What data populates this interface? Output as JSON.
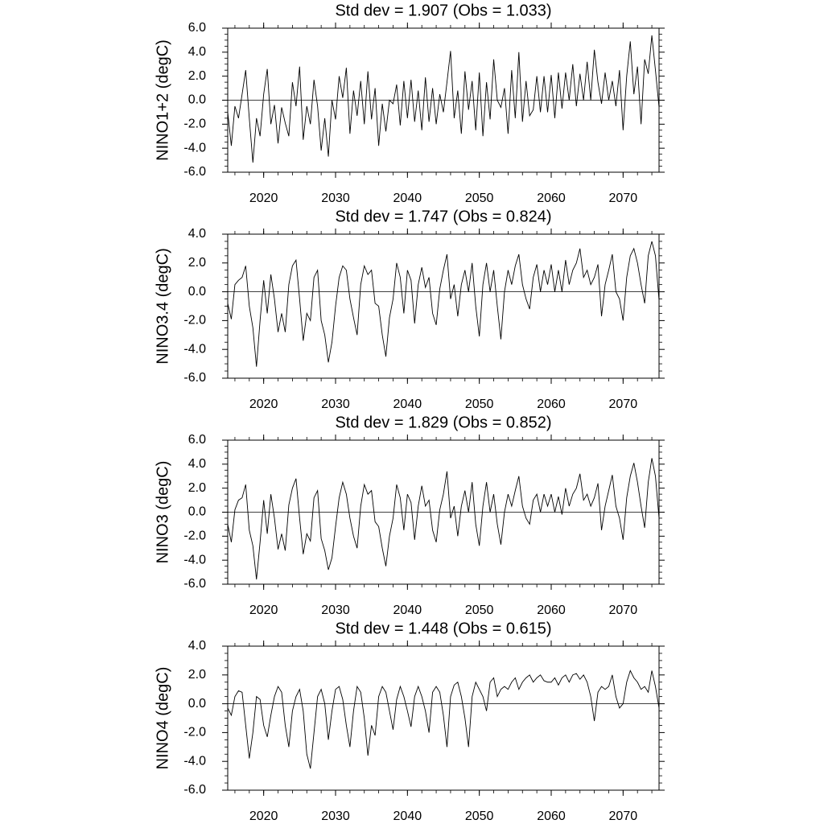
{
  "chart_data": [
    {
      "type": "line",
      "title": "Std dev = 1.907 (Obs = 1.033)",
      "ylabel": "NINO1+2 (degC)",
      "color": "#000000",
      "refline": 0,
      "xlim": [
        2015,
        2075
      ],
      "xticks": [
        2020,
        2030,
        2040,
        2050,
        2060,
        2070
      ],
      "ylim": [
        -6,
        6
      ],
      "yticks": [
        {
          "value": -6,
          "label": "-6.0"
        },
        {
          "value": -4,
          "label": "-4.0"
        },
        {
          "value": -2,
          "label": "-2.0"
        },
        {
          "value": 0,
          "label": "0.0"
        },
        {
          "value": 2,
          "label": "2.0"
        },
        {
          "value": 4,
          "label": "4.0"
        },
        {
          "value": 6,
          "label": "6.0"
        }
      ],
      "x": [
        2015,
        2015.5,
        2016,
        2016.5,
        2017,
        2017.5,
        2018,
        2018.5,
        2019,
        2019.5,
        2020,
        2020.5,
        2021,
        2021.5,
        2022,
        2022.5,
        2023,
        2023.5,
        2024,
        2024.5,
        2025,
        2025.5,
        2026,
        2026.5,
        2027,
        2027.5,
        2028,
        2028.5,
        2029,
        2029.5,
        2030,
        2030.5,
        2031,
        2031.5,
        2032,
        2032.5,
        2033,
        2033.5,
        2034,
        2034.5,
        2035,
        2035.5,
        2036,
        2036.5,
        2037,
        2037.5,
        2038,
        2038.5,
        2039,
        2039.5,
        2040,
        2040.5,
        2041,
        2041.5,
        2042,
        2042.5,
        2043,
        2043.5,
        2044,
        2044.5,
        2045,
        2045.5,
        2046,
        2046.5,
        2047,
        2047.5,
        2048,
        2048.5,
        2049,
        2049.5,
        2050,
        2050.5,
        2051,
        2051.5,
        2052,
        2052.5,
        2053,
        2053.5,
        2054,
        2054.5,
        2055,
        2055.5,
        2056,
        2056.5,
        2057,
        2057.5,
        2058,
        2058.5,
        2059,
        2059.5,
        2060,
        2060.5,
        2061,
        2061.5,
        2062,
        2062.5,
        2063,
        2063.5,
        2064,
        2064.5,
        2065,
        2065.5,
        2066,
        2066.5,
        2067,
        2067.5,
        2068,
        2068.5,
        2069,
        2069.5,
        2070,
        2070.5,
        2071,
        2071.5,
        2072,
        2072.5,
        2073,
        2073.5,
        2074,
        2074.5,
        2075
      ],
      "values": [
        -1,
        -3.8,
        -0.5,
        -1.5,
        0.5,
        2.5,
        -1.5,
        -5.2,
        -1.5,
        -3.0,
        0.5,
        2.6,
        -2,
        -0.4,
        -3.6,
        -0.6,
        -1.9,
        -3.0,
        1.5,
        -0.5,
        2.8,
        -3.3,
        -0.5,
        -2.0,
        1.7,
        -0.5,
        -4.2,
        -1.5,
        -4.7,
        0.0,
        -1.6,
        2.0,
        0.2,
        2.7,
        -2.8,
        0.8,
        -1.3,
        1.6,
        -2.0,
        2.4,
        -1.6,
        1.0,
        -3.8,
        -0.3,
        -2.6,
        0.0,
        -0.3,
        1.3,
        -2.1,
        1.6,
        -1.5,
        1.7,
        -1.8,
        0.8,
        -2.5,
        1.9,
        -1.8,
        1.0,
        -2.0,
        0.5,
        -1.0,
        1.5,
        4.1,
        -1.5,
        0.8,
        -2.8,
        2.4,
        -0.8,
        1.6,
        -2.5,
        2.3,
        -3.0,
        1.5,
        -1.6,
        3.4,
        0.0,
        -0.6,
        1.0,
        -2.8,
        2.5,
        -1.5,
        4.0,
        -1.8,
        1.6,
        -1.3,
        -0.8,
        2.0,
        -1.0,
        2.0,
        -1.0,
        2.1,
        -1.5,
        2.3,
        -0.7,
        2.3,
        0.0,
        3.0,
        -0.5,
        2.2,
        0.0,
        3.2,
        0.0,
        4.2,
        1.5,
        -0.3,
        2.3,
        0.0,
        1.6,
        -0.5,
        2.5,
        -2.5,
        2.0,
        4.9,
        0.5,
        2.8,
        -2.0,
        3.4,
        2.2,
        5.4,
        2.5,
        -0.6
      ]
    },
    {
      "type": "line",
      "title": "Std dev = 1.747 (Obs = 0.824)",
      "ylabel": "NINO3.4 (degC)",
      "color": "#000000",
      "refline": 0,
      "xlim": [
        2015,
        2075
      ],
      "xticks": [
        2020,
        2030,
        2040,
        2050,
        2060,
        2070
      ],
      "ylim": [
        -6,
        4
      ],
      "yticks": [
        {
          "value": -6,
          "label": "-6.0"
        },
        {
          "value": -4,
          "label": "-4.0"
        },
        {
          "value": -2,
          "label": "-2.0"
        },
        {
          "value": 0,
          "label": "0.0"
        },
        {
          "value": 2,
          "label": "2.0"
        },
        {
          "value": 4,
          "label": "4.0"
        }
      ],
      "x": [
        2015,
        2015.5,
        2016,
        2016.5,
        2017,
        2017.5,
        2018,
        2018.5,
        2019,
        2019.5,
        2020,
        2020.5,
        2021,
        2021.5,
        2022,
        2022.5,
        2023,
        2023.5,
        2024,
        2024.5,
        2025,
        2025.5,
        2026,
        2026.5,
        2027,
        2027.5,
        2028,
        2028.5,
        2029,
        2029.5,
        2030,
        2030.5,
        2031,
        2031.5,
        2032,
        2032.5,
        2033,
        2033.5,
        2034,
        2034.5,
        2035,
        2035.5,
        2036,
        2036.5,
        2037,
        2037.5,
        2038,
        2038.5,
        2039,
        2039.5,
        2040,
        2040.5,
        2041,
        2041.5,
        2042,
        2042.5,
        2043,
        2043.5,
        2044,
        2044.5,
        2045,
        2045.5,
        2046,
        2046.5,
        2047,
        2047.5,
        2048,
        2048.5,
        2049,
        2049.5,
        2050,
        2050.5,
        2051,
        2051.5,
        2052,
        2052.5,
        2053,
        2053.5,
        2054,
        2054.5,
        2055,
        2055.5,
        2056,
        2056.5,
        2057,
        2057.5,
        2058,
        2058.5,
        2059,
        2059.5,
        2060,
        2060.5,
        2061,
        2061.5,
        2062,
        2062.5,
        2063,
        2063.5,
        2064,
        2064.5,
        2065,
        2065.5,
        2066,
        2066.5,
        2067,
        2067.5,
        2068,
        2068.5,
        2069,
        2069.5,
        2070,
        2070.5,
        2071,
        2071.5,
        2072,
        2072.5,
        2073,
        2073.5,
        2074,
        2074.5,
        2075
      ],
      "values": [
        -0.8,
        -1.9,
        0.5,
        0.8,
        1.0,
        1.8,
        -1.0,
        -2.5,
        -5.2,
        -2.0,
        0.8,
        -1.5,
        1.2,
        -0.5,
        -2.8,
        -1.5,
        -2.8,
        0.5,
        1.8,
        2.2,
        -0.5,
        -3.4,
        -1.5,
        -2.0,
        1.0,
        1.5,
        -2.0,
        -3.0,
        -4.9,
        -3.5,
        -1.0,
        1.0,
        1.8,
        1.5,
        -0.5,
        -1.8,
        -3.0,
        0.5,
        1.8,
        1.2,
        1.5,
        -0.8,
        -1.0,
        -3.0,
        -4.5,
        -1.8,
        -0.5,
        2.0,
        1.0,
        -1.5,
        1.5,
        0.8,
        -2.2,
        0.5,
        1.7,
        0.3,
        1.0,
        -1.5,
        -2.3,
        0.2,
        1.5,
        2.6,
        -0.5,
        0.5,
        -1.7,
        0.5,
        1.5,
        0.0,
        2.0,
        -1.0,
        -3.1,
        0.5,
        2.0,
        0.0,
        1.5,
        -1.0,
        -3.3,
        0.0,
        1.5,
        0.5,
        1.8,
        2.6,
        0.5,
        -0.5,
        -1.2,
        1.0,
        1.9,
        0.0,
        1.5,
        0.5,
        1.9,
        0.0,
        1.5,
        0.0,
        2.2,
        0.5,
        1.5,
        2.0,
        3.0,
        1.0,
        1.5,
        0.5,
        1.0,
        1.9,
        -1.7,
        0.5,
        1.5,
        2.6,
        0.0,
        -0.5,
        -2.0,
        1.0,
        2.5,
        3.0,
        2.0,
        0.5,
        -0.8,
        2.5,
        3.5,
        2.5,
        -0.6
      ]
    },
    {
      "type": "line",
      "title": "Std dev = 1.829 (Obs = 0.852)",
      "ylabel": "NINO3 (degC)",
      "color": "#000000",
      "refline": 0,
      "xlim": [
        2015,
        2075
      ],
      "xticks": [
        2020,
        2030,
        2040,
        2050,
        2060,
        2070
      ],
      "ylim": [
        -6,
        6
      ],
      "yticks": [
        {
          "value": -6,
          "label": "-6.0"
        },
        {
          "value": -4,
          "label": "-4.0"
        },
        {
          "value": -2,
          "label": "-2.0"
        },
        {
          "value": 0,
          "label": "0.0"
        },
        {
          "value": 2,
          "label": "2.0"
        },
        {
          "value": 4,
          "label": "4.0"
        },
        {
          "value": 6,
          "label": "6.0"
        }
      ],
      "x": [
        2015,
        2015.5,
        2016,
        2016.5,
        2017,
        2017.5,
        2018,
        2018.5,
        2019,
        2019.5,
        2020,
        2020.5,
        2021,
        2021.5,
        2022,
        2022.5,
        2023,
        2023.5,
        2024,
        2024.5,
        2025,
        2025.5,
        2026,
        2026.5,
        2027,
        2027.5,
        2028,
        2028.5,
        2029,
        2029.5,
        2030,
        2030.5,
        2031,
        2031.5,
        2032,
        2032.5,
        2033,
        2033.5,
        2034,
        2034.5,
        2035,
        2035.5,
        2036,
        2036.5,
        2037,
        2037.5,
        2038,
        2038.5,
        2039,
        2039.5,
        2040,
        2040.5,
        2041,
        2041.5,
        2042,
        2042.5,
        2043,
        2043.5,
        2044,
        2044.5,
        2045,
        2045.5,
        2046,
        2046.5,
        2047,
        2047.5,
        2048,
        2048.5,
        2049,
        2049.5,
        2050,
        2050.5,
        2051,
        2051.5,
        2052,
        2052.5,
        2053,
        2053.5,
        2054,
        2054.5,
        2055,
        2055.5,
        2056,
        2056.5,
        2057,
        2057.5,
        2058,
        2058.5,
        2059,
        2059.5,
        2060,
        2060.5,
        2061,
        2061.5,
        2062,
        2062.5,
        2063,
        2063.5,
        2064,
        2064.5,
        2065,
        2065.5,
        2066,
        2066.5,
        2067,
        2067.5,
        2068,
        2068.5,
        2069,
        2069.5,
        2070,
        2070.5,
        2071,
        2071.5,
        2072,
        2072.5,
        2073,
        2073.5,
        2074,
        2074.5,
        2075
      ],
      "values": [
        -1.0,
        -2.5,
        0.2,
        1.0,
        1.2,
        2.3,
        -1.5,
        -2.8,
        -5.6,
        -2.5,
        1.0,
        -1.8,
        1.5,
        -0.5,
        -3.1,
        -1.8,
        -3.2,
        0.6,
        2.0,
        2.8,
        -0.5,
        -3.5,
        -1.8,
        -2.4,
        1.2,
        1.8,
        -2.2,
        -3.2,
        -4.8,
        -3.8,
        -1.2,
        1.2,
        2.5,
        1.5,
        -0.5,
        -2.0,
        -3.0,
        0.5,
        2.3,
        1.5,
        1.8,
        -0.8,
        -1.2,
        -3.0,
        -4.5,
        -2.0,
        -0.5,
        2.3,
        1.2,
        -1.5,
        1.5,
        0.8,
        -2.3,
        0.5,
        2.2,
        0.5,
        1.0,
        -1.5,
        -2.5,
        0.2,
        1.5,
        3.4,
        -0.5,
        0.5,
        -2.0,
        0.5,
        1.8,
        0.0,
        2.5,
        -1.0,
        -2.8,
        0.5,
        2.5,
        0.0,
        1.5,
        -1.0,
        -2.7,
        0.0,
        1.5,
        0.5,
        1.8,
        3.0,
        0.5,
        -0.5,
        -1.0,
        1.0,
        1.5,
        0.0,
        1.5,
        0.5,
        1.5,
        0.0,
        1.3,
        -0.2,
        2.0,
        0.5,
        1.5,
        2.0,
        3.2,
        1.0,
        1.5,
        0.5,
        1.2,
        2.4,
        -1.5,
        0.5,
        1.8,
        3.1,
        0.5,
        -0.5,
        -2.3,
        1.2,
        3.0,
        4.1,
        2.5,
        0.5,
        -1.3,
        2.5,
        4.5,
        3.0,
        -0.5
      ]
    },
    {
      "type": "line",
      "title": "Std dev = 1.448 (Obs = 0.615)",
      "ylabel": "NINO4 (degC)",
      "color": "#000000",
      "refline": 0,
      "xlim": [
        2015,
        2075
      ],
      "xticks": [
        2020,
        2030,
        2040,
        2050,
        2060,
        2070
      ],
      "ylim": [
        -6,
        4
      ],
      "yticks": [
        {
          "value": -6,
          "label": "-6.0"
        },
        {
          "value": -4,
          "label": "-4.0"
        },
        {
          "value": -2,
          "label": "-2.0"
        },
        {
          "value": 0,
          "label": "0.0"
        },
        {
          "value": 2,
          "label": "2.0"
        },
        {
          "value": 4,
          "label": "4.0"
        }
      ],
      "x": [
        2015,
        2015.5,
        2016,
        2016.5,
        2017,
        2017.5,
        2018,
        2018.5,
        2019,
        2019.5,
        2020,
        2020.5,
        2021,
        2021.5,
        2022,
        2022.5,
        2023,
        2023.5,
        2024,
        2024.5,
        2025,
        2025.5,
        2026,
        2026.5,
        2027,
        2027.5,
        2028,
        2028.5,
        2029,
        2029.5,
        2030,
        2030.5,
        2031,
        2031.5,
        2032,
        2032.5,
        2033,
        2033.5,
        2034,
        2034.5,
        2035,
        2035.5,
        2036,
        2036.5,
        2037,
        2037.5,
        2038,
        2038.5,
        2039,
        2039.5,
        2040,
        2040.5,
        2041,
        2041.5,
        2042,
        2042.5,
        2043,
        2043.5,
        2044,
        2044.5,
        2045,
        2045.5,
        2046,
        2046.5,
        2047,
        2047.5,
        2048,
        2048.5,
        2049,
        2049.5,
        2050,
        2050.5,
        2051,
        2051.5,
        2052,
        2052.5,
        2053,
        2053.5,
        2054,
        2054.5,
        2055,
        2055.5,
        2056,
        2056.5,
        2057,
        2057.5,
        2058,
        2058.5,
        2059,
        2059.5,
        2060,
        2060.5,
        2061,
        2061.5,
        2062,
        2062.5,
        2063,
        2063.5,
        2064,
        2064.5,
        2065,
        2065.5,
        2066,
        2066.5,
        2067,
        2067.5,
        2068,
        2068.5,
        2069,
        2069.5,
        2070,
        2070.5,
        2071,
        2071.5,
        2072,
        2072.5,
        2073,
        2073.5,
        2074,
        2074.5,
        2075
      ],
      "values": [
        -0.3,
        -0.8,
        0.5,
        0.9,
        0.8,
        -1.5,
        -3.8,
        -2.0,
        0.5,
        0.3,
        -1.5,
        -2.3,
        -0.8,
        0.5,
        1.2,
        0.8,
        -1.5,
        -3.0,
        -0.5,
        0.5,
        1.0,
        -0.5,
        -3.5,
        -4.5,
        -2.0,
        0.5,
        1.0,
        0.0,
        -2.5,
        -0.5,
        1.0,
        1.2,
        0.3,
        -1.5,
        -3.0,
        -0.5,
        1.2,
        0.8,
        -1.0,
        -3.6,
        -1.5,
        -2.2,
        0.5,
        1.2,
        0.8,
        -0.5,
        -1.8,
        0.3,
        1.2,
        0.5,
        -0.5,
        -1.6,
        0.5,
        1.2,
        0.5,
        -0.5,
        -2.0,
        0.8,
        1.2,
        0.8,
        -0.8,
        -3.0,
        0.5,
        1.3,
        1.5,
        0.5,
        -1.0,
        -3.0,
        0.5,
        1.5,
        1.0,
        0.5,
        -0.5,
        1.5,
        1.8,
        0.5,
        1.0,
        1.2,
        1.0,
        1.5,
        1.8,
        1.0,
        1.5,
        1.8,
        2.0,
        1.5,
        1.8,
        2.0,
        1.6,
        1.5,
        1.5,
        1.8,
        1.3,
        1.8,
        2.0,
        1.5,
        2.0,
        2.1,
        1.7,
        2.0,
        1.5,
        0.5,
        -1.2,
        0.8,
        1.2,
        1.0,
        1.2,
        2.0,
        0.5,
        -0.3,
        0.0,
        1.5,
        2.3,
        1.8,
        1.5,
        1.0,
        1.2,
        0.8,
        2.3,
        1.2,
        -0.3
      ]
    }
  ]
}
